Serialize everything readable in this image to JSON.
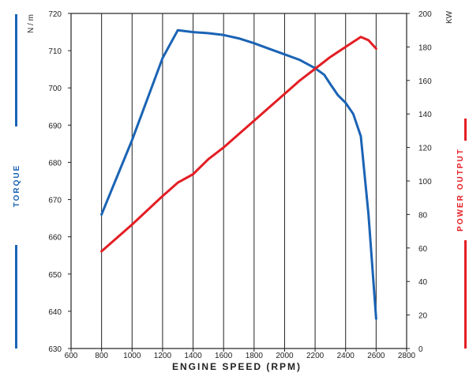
{
  "chart_data": {
    "type": "line",
    "xlabel": "ENGINE SPEED (RPM)",
    "xlim": [
      600,
      2800
    ],
    "x_ticks": [
      600,
      800,
      1000,
      1200,
      1400,
      1600,
      1800,
      2000,
      2200,
      2400,
      2600,
      2800
    ],
    "left_axis": {
      "label": "TORQUE",
      "unit": "N / m",
      "ylim": [
        630,
        720
      ],
      "ticks": [
        630,
        640,
        650,
        660,
        670,
        680,
        690,
        700,
        710,
        720
      ]
    },
    "right_axis": {
      "label": "POWER OUTPUT",
      "unit": "KW",
      "ylim": [
        0,
        200
      ],
      "ticks": [
        0,
        20,
        40,
        60,
        80,
        100,
        120,
        140,
        160,
        180,
        200
      ]
    },
    "grid": "vertical",
    "series": [
      {
        "name": "TORQUE",
        "axis": "left",
        "color": "#1a63b5",
        "points": [
          [
            800,
            666
          ],
          [
            1000,
            686
          ],
          [
            1200,
            708
          ],
          [
            1300,
            715.5
          ],
          [
            1400,
            715
          ],
          [
            1500,
            714.7
          ],
          [
            1600,
            714.2
          ],
          [
            1700,
            713.3
          ],
          [
            1800,
            712
          ],
          [
            1900,
            710.5
          ],
          [
            2000,
            709
          ],
          [
            2100,
            707.5
          ],
          [
            2200,
            705.3
          ],
          [
            2260,
            703.5
          ],
          [
            2300,
            701
          ],
          [
            2350,
            698
          ],
          [
            2400,
            696
          ],
          [
            2450,
            693
          ],
          [
            2500,
            687
          ],
          [
            2550,
            666
          ],
          [
            2600,
            638
          ]
        ]
      },
      {
        "name": "POWER OUTPUT",
        "axis": "right",
        "color": "#e31e24",
        "points": [
          [
            800,
            58
          ],
          [
            1000,
            74
          ],
          [
            1200,
            91
          ],
          [
            1300,
            99
          ],
          [
            1400,
            104
          ],
          [
            1500,
            113
          ],
          [
            1600,
            120
          ],
          [
            1700,
            128
          ],
          [
            1800,
            136
          ],
          [
            1900,
            144
          ],
          [
            2000,
            152
          ],
          [
            2100,
            160
          ],
          [
            2200,
            167
          ],
          [
            2300,
            174
          ],
          [
            2400,
            180
          ],
          [
            2450,
            183
          ],
          [
            2500,
            186
          ],
          [
            2550,
            184
          ],
          [
            2600,
            179
          ]
        ]
      }
    ]
  },
  "colors": {
    "torque": "#1a63b5",
    "power": "#e31e24",
    "grid": "#222222"
  }
}
